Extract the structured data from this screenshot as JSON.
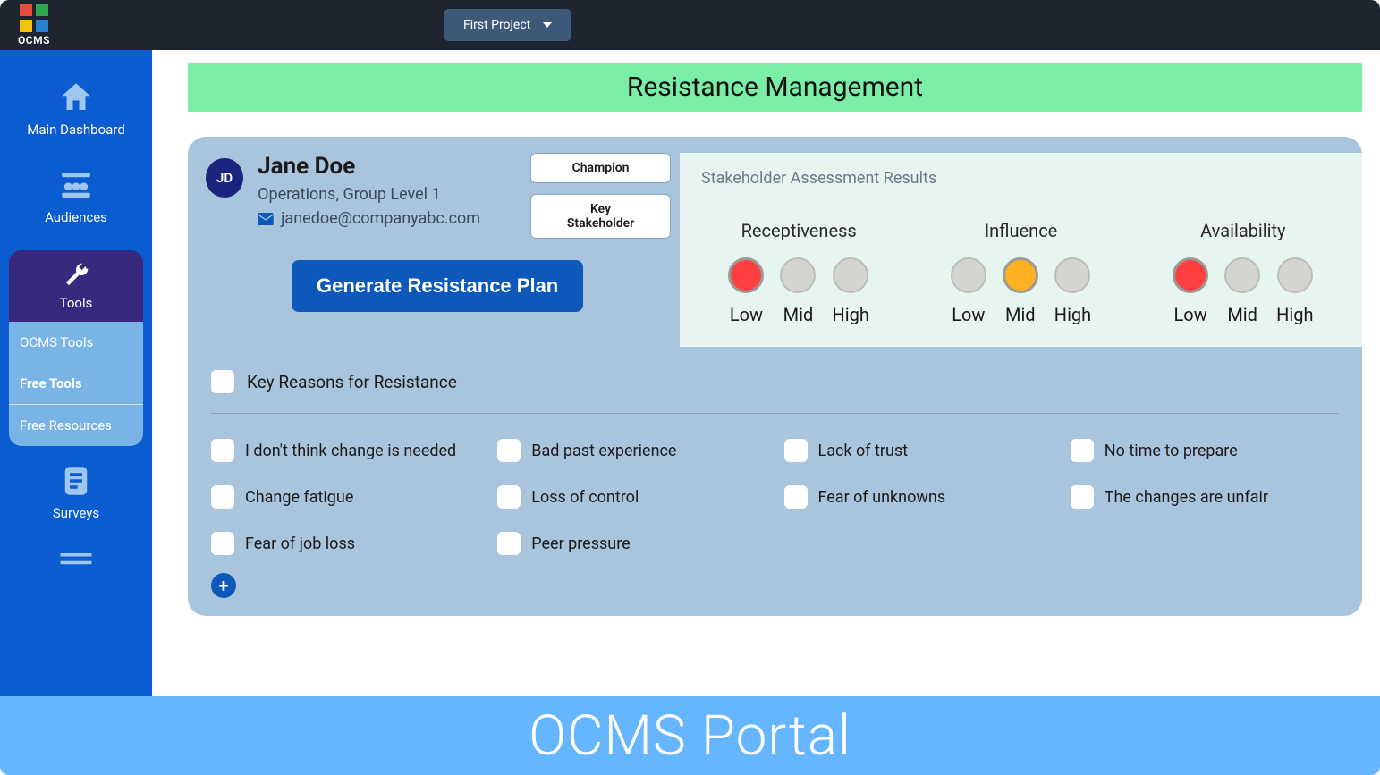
{
  "brand": {
    "name": "OCMS"
  },
  "topbar": {
    "project": "First Project"
  },
  "sidebar": {
    "items": [
      {
        "id": "dashboard",
        "label": "Main Dashboard"
      },
      {
        "id": "audiences",
        "label": "Audiences"
      },
      {
        "id": "tools",
        "label": "Tools"
      },
      {
        "id": "surveys",
        "label": "Surveys"
      }
    ],
    "submenu": [
      {
        "id": "ocms-tools",
        "label": "OCMS Tools",
        "active": false
      },
      {
        "id": "free-tools",
        "label": "Free Tools",
        "active": true
      },
      {
        "id": "free-resources",
        "label": "Free Resources",
        "active": false
      }
    ]
  },
  "page": {
    "title": "Resistance Management"
  },
  "profile": {
    "initials": "JD",
    "name": "Jane Doe",
    "role": "Operations, Group Level 1",
    "email": "janedoe@companyabc.com",
    "tags": [
      "Champion",
      "Key Stakeholder"
    ],
    "action": "Generate Resistance Plan"
  },
  "assessment": {
    "title": "Stakeholder Assessment Results",
    "levels": [
      "Low",
      "Mid",
      "High"
    ],
    "metrics": [
      {
        "label": "Receptiveness",
        "value": "Low",
        "color": "#ff4040"
      },
      {
        "label": "Influence",
        "value": "Mid",
        "color": "#ffb020"
      },
      {
        "label": "Availability",
        "value": "Low",
        "color": "#ff4040"
      }
    ],
    "dot_empty_bg": "#d4d4d0",
    "dot_empty_border": "#bdbdb8"
  },
  "reasons": {
    "header": "Key Reasons for Resistance",
    "items": [
      "I don't think change is needed",
      "Bad past experience",
      "Lack of trust",
      "No time to prepare",
      "Change fatigue",
      "Loss of control",
      "Fear of unknowns",
      "The changes are unfair",
      "Fear of job loss",
      "Peer pressure"
    ]
  },
  "footer": {
    "text": "OCMS Portal"
  },
  "colors": {
    "topbar_bg": "#1e2530",
    "sidebar_bg": "#0a5cd0",
    "tools_bg": "#39297e",
    "submenu_bg": "#7ab3e6",
    "title_bg": "#7aeea7",
    "card_bg": "#a9c5dd",
    "assessment_bg": "#e7f5f1",
    "primary_btn": "#0d58b8",
    "footer_bg": "#66b6ff"
  }
}
